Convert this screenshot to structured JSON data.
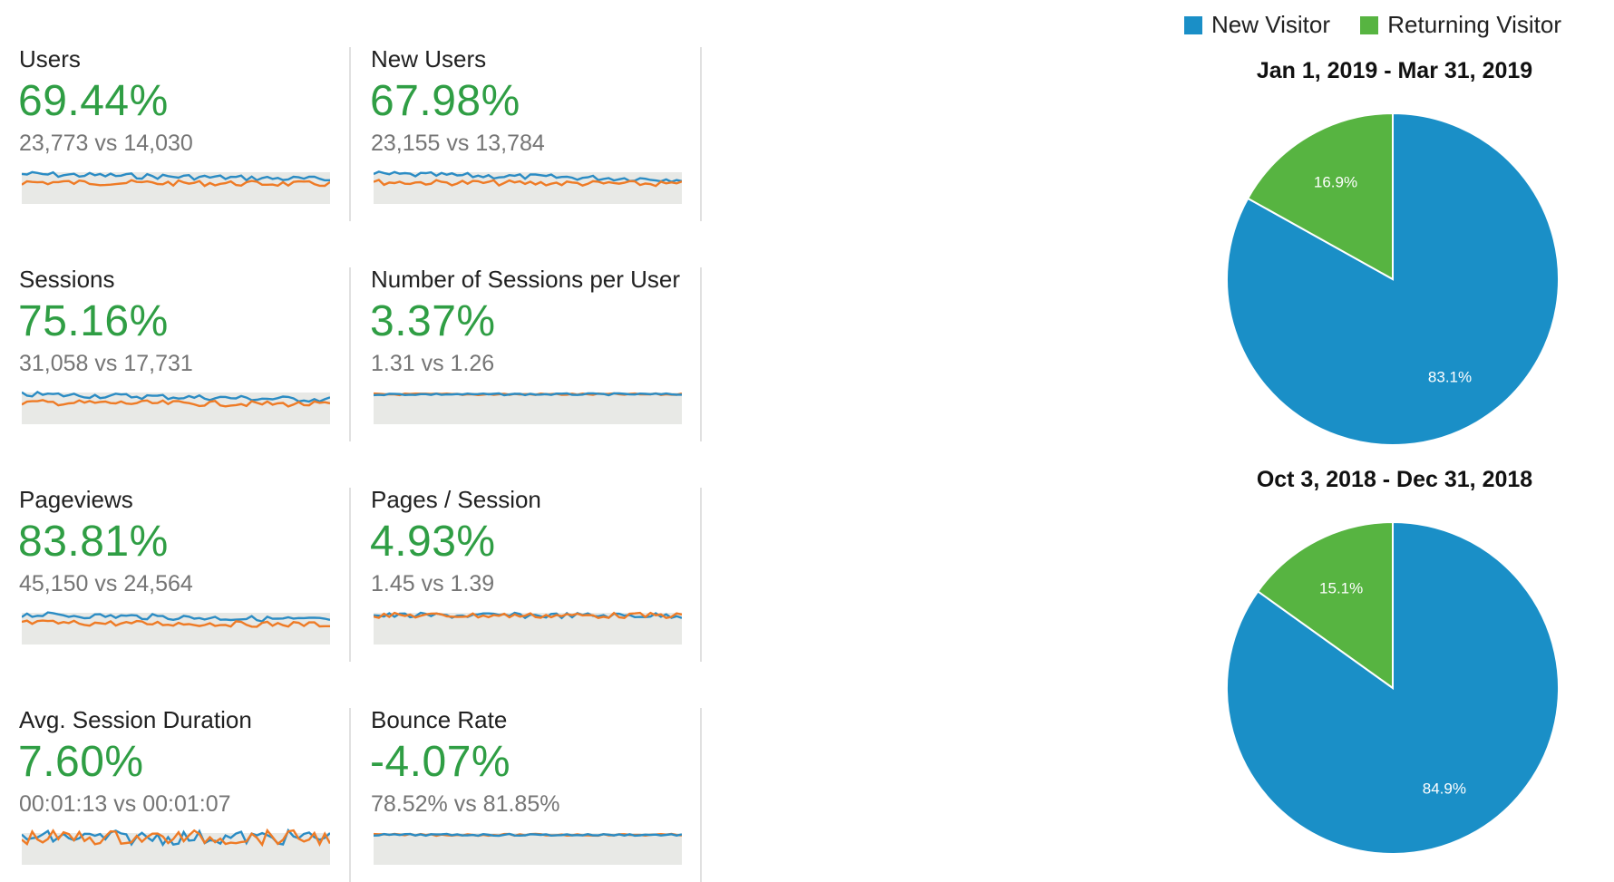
{
  "colors": {
    "new_visitor": "#1a8fc7",
    "returning_visitor": "#57b441",
    "increase": "#2f9e44",
    "current_line": "#2b8cc4",
    "previous_line": "#ee7b26",
    "spark_fill": "#e8e9e6"
  },
  "metrics": [
    {
      "label": "Users",
      "change": "69.44%",
      "comparison": "23,773 vs 14,030"
    },
    {
      "label": "New Users",
      "change": "67.98%",
      "comparison": "23,155 vs 13,784"
    },
    {
      "label": "Sessions",
      "change": "75.16%",
      "comparison": "31,058 vs 17,731"
    },
    {
      "label": "Number of Sessions per User",
      "change": "3.37%",
      "comparison": "1.31 vs 1.26"
    },
    {
      "label": "Pageviews",
      "change": "83.81%",
      "comparison": "45,150 vs 24,564"
    },
    {
      "label": "Pages / Session",
      "change": "4.93%",
      "comparison": "1.45 vs 1.39"
    },
    {
      "label": "Avg. Session Duration",
      "change": "7.60%",
      "comparison": "00:01:13 vs 00:01:07"
    },
    {
      "label": "Bounce Rate",
      "change": "-4.07%",
      "comparison": "78.52% vs 81.85%"
    }
  ],
  "legend": {
    "new_visitor": "New Visitor",
    "returning_visitor": "Returning Visitor"
  },
  "chart_data": [
    {
      "type": "pie",
      "title": "Jan 1, 2019 - Mar 31, 2019",
      "categories": [
        "New Visitor",
        "Returning Visitor"
      ],
      "values": [
        83.1,
        16.9
      ],
      "data_labels": [
        "83.1%",
        "16.9%"
      ],
      "legend_position": "top-right"
    },
    {
      "type": "pie",
      "title": "Oct 3, 2018 - Dec 31, 2018",
      "categories": [
        "New Visitor",
        "Returning Visitor"
      ],
      "values": [
        84.9,
        15.1
      ],
      "data_labels": [
        "84.9%",
        "15.1%"
      ],
      "legend_position": "top-right"
    }
  ]
}
